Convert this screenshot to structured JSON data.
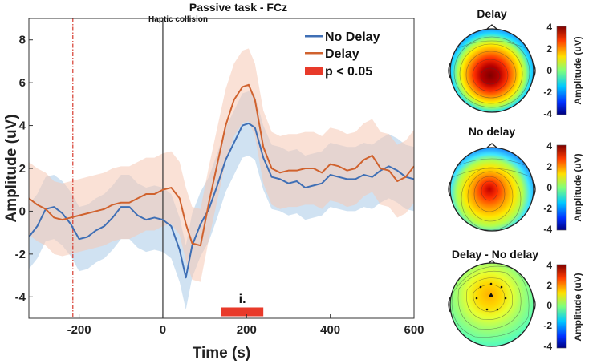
{
  "chart_data": [
    {
      "type": "line",
      "title": "Passive task - FCz",
      "event_label": "Haptic collision",
      "xlabel": "Time (s)",
      "ylabel": "Amplitude (uV)",
      "xlim": [
        -320,
        600
      ],
      "ylim": [
        -5,
        9
      ],
      "xticks": [
        "-200",
        "0",
        "200",
        "400",
        "600"
      ],
      "xtick_values": [
        -200,
        0,
        200,
        400,
        600
      ],
      "yticks": [
        "-4",
        "-2",
        "0",
        "2",
        "4",
        "6",
        "8"
      ],
      "ytick_values": [
        -4,
        -2,
        0,
        2,
        4,
        6,
        8
      ],
      "vlines": [
        {
          "x": -215,
          "style": "dash-dot",
          "color": "#d63b2f"
        },
        {
          "x": 0,
          "style": "solid",
          "color": "#333333"
        }
      ],
      "series": [
        {
          "name": "No Delay",
          "color": "#3f6fb5",
          "band_color": "#a9cbe8",
          "x": [
            -320,
            -300,
            -280,
            -260,
            -240,
            -220,
            -200,
            -180,
            -160,
            -140,
            -120,
            -100,
            -80,
            -60,
            -40,
            -20,
            0,
            20,
            40,
            55,
            70,
            90,
            110,
            130,
            150,
            170,
            190,
            205,
            220,
            240,
            260,
            280,
            300,
            320,
            340,
            360,
            380,
            400,
            420,
            440,
            460,
            480,
            500,
            520,
            540,
            560,
            580,
            600
          ],
          "values": [
            -1.2,
            -0.7,
            0.1,
            0.2,
            -0.1,
            -0.6,
            -1.3,
            -1.2,
            -0.9,
            -0.7,
            -0.3,
            0.2,
            0.2,
            -0.2,
            -0.4,
            -0.3,
            -0.4,
            -0.7,
            -1.8,
            -3.1,
            -1.6,
            -0.6,
            0.1,
            1.2,
            2.4,
            3.2,
            4.0,
            4.1,
            3.9,
            2.5,
            1.6,
            1.5,
            1.3,
            1.4,
            1.1,
            1.2,
            1.3,
            1.7,
            1.6,
            1.5,
            1.5,
            1.7,
            1.6,
            1.9,
            2.1,
            1.9,
            1.6,
            1.5
          ],
          "band": 1.5
        },
        {
          "name": "Delay",
          "color": "#d0622e",
          "band_color": "#f6c8b4",
          "x": [
            -320,
            -300,
            -280,
            -260,
            -240,
            -220,
            -200,
            -180,
            -160,
            -140,
            -120,
            -100,
            -80,
            -60,
            -40,
            -20,
            0,
            20,
            40,
            55,
            70,
            90,
            110,
            130,
            150,
            170,
            190,
            205,
            220,
            240,
            260,
            280,
            300,
            320,
            340,
            360,
            380,
            400,
            420,
            440,
            460,
            480,
            500,
            520,
            540,
            560,
            580,
            600
          ],
          "values": [
            0.6,
            0.3,
            0.1,
            -0.3,
            -0.4,
            -0.3,
            -0.2,
            -0.1,
            0.0,
            0.1,
            0.3,
            0.4,
            0.4,
            0.6,
            0.8,
            0.8,
            1.0,
            1.1,
            0.6,
            -0.6,
            -1.5,
            -1.6,
            0.4,
            2.2,
            4.0,
            5.2,
            5.8,
            5.9,
            5.2,
            3.0,
            2.0,
            1.8,
            1.9,
            1.9,
            2.0,
            2.0,
            1.8,
            2.2,
            2.1,
            1.9,
            2.0,
            2.4,
            2.6,
            2.0,
            1.9,
            1.4,
            1.6,
            2.1
          ],
          "band": 1.7
        }
      ],
      "significance": [
        {
          "x_start": 140,
          "x_end": 240,
          "label": "i.",
          "color": "#e83a2a"
        }
      ],
      "legend": {
        "position": "top-right",
        "entries": [
          "No Delay",
          "Delay",
          "p < 0.05"
        ]
      }
    },
    {
      "type": "heatmap",
      "subtype": "topographic map",
      "maps": [
        {
          "title": "Delay",
          "colorbar_ticks": [
            "4",
            "2",
            "0",
            "-2",
            "-4"
          ],
          "colorbar_label": "Amplitude (uV)"
        },
        {
          "title": "No delay",
          "colorbar_ticks": [
            "4",
            "2",
            "0",
            "-2",
            "-4"
          ],
          "colorbar_label": "Amplitude (uV)"
        },
        {
          "title": "Delay - No delay",
          "colorbar_ticks": [
            "4",
            "2",
            "0",
            "-2",
            "-4"
          ],
          "colorbar_label": "Amplitude (uV)"
        }
      ],
      "colormap": [
        "#00007f",
        "#0050ff",
        "#00d4ff",
        "#7dff7a",
        "#ffe600",
        "#ff5a00",
        "#7f0000"
      ],
      "range": [
        -4,
        4
      ]
    }
  ]
}
